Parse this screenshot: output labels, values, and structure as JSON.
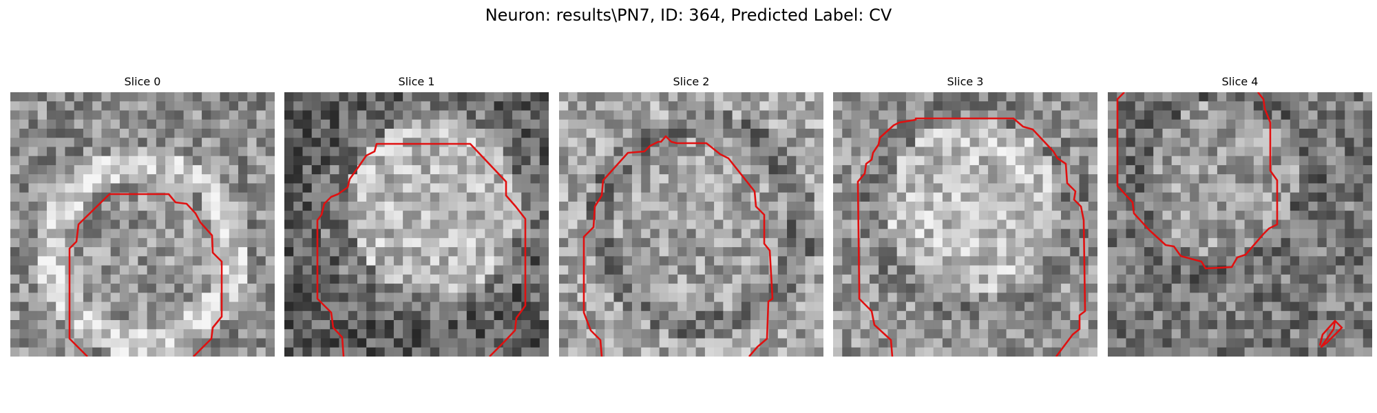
{
  "figure": {
    "title": "Neuron: results\\PN7, ID: 364, Predicted Label: CV"
  },
  "contour_color": "#e01010",
  "panels": [
    {
      "title": "Slice 0"
    },
    {
      "title": "Slice 1"
    },
    {
      "title": "Slice 2"
    },
    {
      "title": "Slice 3"
    },
    {
      "title": "Slice 4"
    }
  ]
}
